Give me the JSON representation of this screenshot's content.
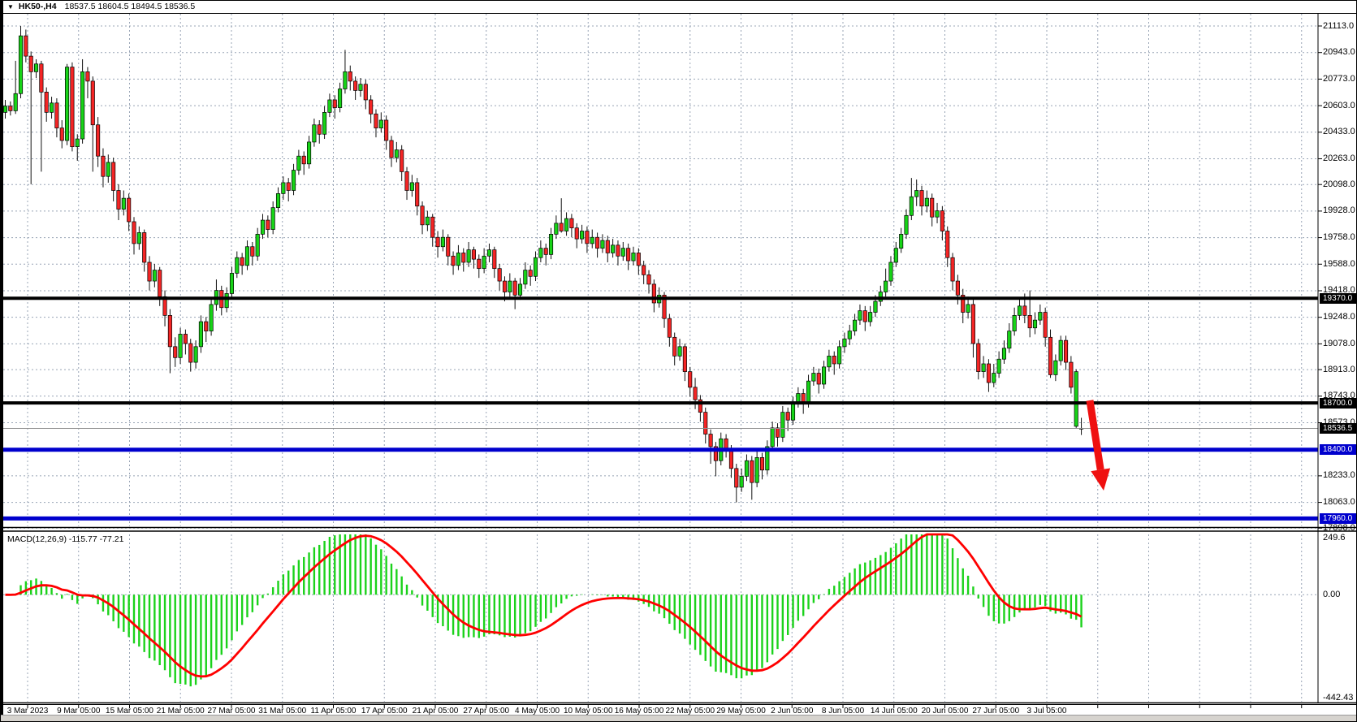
{
  "window": {
    "dropdown_icon": "▼",
    "symbol_period": "HK50-,H4",
    "ohlc_readout": "18537.5 18604.5 18494.5 18536.5"
  },
  "colors": {
    "background": "#ffffff",
    "grid": "#98a4b5",
    "bull": "#17d317",
    "bear": "#f42525",
    "wick": "#111111",
    "black_level": "#000000",
    "blue_level": "#0000cd",
    "current_price_line": "#909090",
    "macd_histogram": "#1bd21b",
    "macd_signal": "#ff0000",
    "arrow": "#ef1010"
  },
  "chart_data": {
    "type": "candlestick",
    "symbol": "HK50",
    "period": "H4",
    "title": "HK50-,H4  18537.5 18604.5 18494.5 18536.5",
    "ylim": [
      17910,
      21191
    ],
    "grid": true,
    "y_ticks": [
      21113.0,
      20943.0,
      20773.0,
      20603.0,
      20433.0,
      20263.0,
      20098.0,
      19928.0,
      19758.0,
      19588.0,
      19418.0,
      19248.0,
      19078.0,
      18913.0,
      18743.0,
      18573.0,
      18233.0,
      18063.0,
      17898.0
    ],
    "x_labels": [
      "3 Mar 2023",
      "9 Mar 05:00",
      "15 Mar 05:00",
      "21 Mar 05:00",
      "27 Mar 05:00",
      "31 Mar 05:00",
      "11 Apr 05:00",
      "17 Apr 05:00",
      "21 Apr 05:00",
      "27 Apr 05:00",
      "4 May 05:00",
      "10 May 05:00",
      "16 May 05:00",
      "22 May 05:00",
      "29 May 05:00",
      "2 Jun 05:00",
      "8 Jun 05:00",
      "14 Jun 05:00",
      "20 Jun 05:00",
      "27 Jun 05:00",
      "3 Jul 05:00"
    ],
    "levels": [
      {
        "value": 19370.0,
        "label": "19370.0",
        "color_key": "black_level",
        "thickness": 4,
        "badge": "black"
      },
      {
        "value": 18700.0,
        "label": "18700.0",
        "color_key": "black_level",
        "thickness": 4,
        "badge": "black"
      },
      {
        "value": 18536.5,
        "label": "18536.5",
        "color_key": "current_price_line",
        "thickness": 1,
        "badge": "black",
        "current_price": true
      },
      {
        "value": 18400.0,
        "label": "18400.0",
        "color_key": "blue_level",
        "thickness": 5,
        "badge": "blue"
      },
      {
        "value": 17960.0,
        "label": "17960.0",
        "color_key": "blue_level",
        "thickness": 5,
        "badge": "blue"
      }
    ],
    "candles": [
      [
        20560,
        20640,
        20520,
        20600
      ],
      [
        20600,
        20630,
        20540,
        20570
      ],
      [
        20570,
        20890,
        20550,
        20680
      ],
      [
        20680,
        21113,
        20650,
        21050
      ],
      [
        21050,
        21090,
        20880,
        20920
      ],
      [
        20920,
        20950,
        20100,
        20820
      ],
      [
        20820,
        20900,
        20780,
        20870
      ],
      [
        20870,
        20890,
        20180,
        20690
      ],
      [
        20690,
        20720,
        20500,
        20560
      ],
      [
        20560,
        20660,
        20520,
        20620
      ],
      [
        20620,
        20650,
        20400,
        20460
      ],
      [
        20460,
        20510,
        20330,
        20380
      ],
      [
        20380,
        20870,
        20350,
        20850
      ],
      [
        20850,
        20880,
        20310,
        20340
      ],
      [
        20340,
        20420,
        20250,
        20390
      ],
      [
        20390,
        20900,
        20360,
        20820
      ],
      [
        20820,
        20850,
        20650,
        20760
      ],
      [
        20760,
        20790,
        20180,
        20480
      ],
      [
        20480,
        20530,
        20210,
        20280
      ],
      [
        20280,
        20330,
        20080,
        20150
      ],
      [
        20150,
        20290,
        20110,
        20240
      ],
      [
        20240,
        20270,
        19990,
        20060
      ],
      [
        20060,
        20100,
        19870,
        19940
      ],
      [
        19940,
        20060,
        19900,
        20010
      ],
      [
        20010,
        20040,
        19800,
        19860
      ],
      [
        19860,
        19890,
        19650,
        19720
      ],
      [
        19720,
        19830,
        19680,
        19790
      ],
      [
        19790,
        19810,
        19540,
        19600
      ],
      [
        19600,
        19640,
        19420,
        19480
      ],
      [
        19480,
        19590,
        19440,
        19550
      ],
      [
        19550,
        19570,
        19320,
        19380
      ],
      [
        19380,
        19420,
        19190,
        19260
      ],
      [
        19260,
        19300,
        18890,
        19060
      ],
      [
        19060,
        19120,
        18930,
        18990
      ],
      [
        18990,
        19180,
        18950,
        19140
      ],
      [
        19140,
        19170,
        19010,
        19080
      ],
      [
        19080,
        19110,
        18900,
        18960
      ],
      [
        18960,
        19100,
        18920,
        19060
      ],
      [
        19060,
        19260,
        19020,
        19220
      ],
      [
        19220,
        19250,
        19090,
        19160
      ],
      [
        19160,
        19370,
        19130,
        19330
      ],
      [
        19330,
        19490,
        19290,
        19420
      ],
      [
        19420,
        19450,
        19260,
        19310
      ],
      [
        19310,
        19440,
        19280,
        19400
      ],
      [
        19400,
        19570,
        19370,
        19530
      ],
      [
        19530,
        19670,
        19500,
        19630
      ],
      [
        19630,
        19660,
        19520,
        19580
      ],
      [
        19580,
        19740,
        19550,
        19700
      ],
      [
        19700,
        19730,
        19580,
        19640
      ],
      [
        19640,
        19820,
        19610,
        19780
      ],
      [
        19780,
        19910,
        19750,
        19870
      ],
      [
        19870,
        19900,
        19760,
        19810
      ],
      [
        19810,
        19990,
        19780,
        19950
      ],
      [
        19950,
        20080,
        19920,
        20040
      ],
      [
        20040,
        20150,
        20000,
        20110
      ],
      [
        20110,
        20140,
        19990,
        20060
      ],
      [
        20060,
        20230,
        20030,
        20190
      ],
      [
        20190,
        20320,
        20160,
        20280
      ],
      [
        20280,
        20310,
        20160,
        20230
      ],
      [
        20230,
        20410,
        20200,
        20370
      ],
      [
        20370,
        20520,
        20340,
        20480
      ],
      [
        20480,
        20510,
        20360,
        20420
      ],
      [
        20420,
        20600,
        20390,
        20560
      ],
      [
        20560,
        20680,
        20530,
        20640
      ],
      [
        20640,
        20670,
        20520,
        20590
      ],
      [
        20590,
        20750,
        20560,
        20710
      ],
      [
        20710,
        20960,
        20680,
        20820
      ],
      [
        20820,
        20860,
        20700,
        20760
      ],
      [
        20760,
        20790,
        20640,
        20700
      ],
      [
        20700,
        20780,
        20660,
        20740
      ],
      [
        20740,
        20770,
        20580,
        20640
      ],
      [
        20640,
        20670,
        20490,
        20550
      ],
      [
        20550,
        20580,
        20400,
        20460
      ],
      [
        20460,
        20560,
        20430,
        20510
      ],
      [
        20510,
        20540,
        20320,
        20380
      ],
      [
        20380,
        20410,
        20210,
        20270
      ],
      [
        20270,
        20370,
        20240,
        20320
      ],
      [
        20320,
        20350,
        20120,
        20180
      ],
      [
        20180,
        20210,
        20000,
        20060
      ],
      [
        20060,
        20160,
        20020,
        20110
      ],
      [
        20110,
        20140,
        19900,
        19960
      ],
      [
        19960,
        19990,
        19780,
        19840
      ],
      [
        19840,
        19930,
        19800,
        19890
      ],
      [
        19890,
        19910,
        19700,
        19760
      ],
      [
        19760,
        19800,
        19630,
        19700
      ],
      [
        19700,
        19810,
        19670,
        19760
      ],
      [
        19760,
        19780,
        19580,
        19640
      ],
      [
        19640,
        19670,
        19520,
        19580
      ],
      [
        19580,
        19710,
        19550,
        19660
      ],
      [
        19660,
        19690,
        19540,
        19600
      ],
      [
        19600,
        19730,
        19570,
        19680
      ],
      [
        19680,
        19700,
        19560,
        19620
      ],
      [
        19620,
        19650,
        19500,
        19560
      ],
      [
        19560,
        19690,
        19530,
        19640
      ],
      [
        19640,
        19720,
        19600,
        19680
      ],
      [
        19680,
        19700,
        19500,
        19560
      ],
      [
        19560,
        19590,
        19420,
        19480
      ],
      [
        19480,
        19510,
        19350,
        19410
      ],
      [
        19410,
        19530,
        19380,
        19480
      ],
      [
        19480,
        19500,
        19300,
        19390
      ],
      [
        19390,
        19500,
        19360,
        19460
      ],
      [
        19460,
        19600,
        19430,
        19550
      ],
      [
        19550,
        19580,
        19450,
        19510
      ],
      [
        19510,
        19670,
        19480,
        19630
      ],
      [
        19630,
        19740,
        19600,
        19690
      ],
      [
        19690,
        19720,
        19580,
        19650
      ],
      [
        19650,
        19820,
        19620,
        19780
      ],
      [
        19780,
        19900,
        19750,
        19850
      ],
      [
        19850,
        20010,
        19790,
        19800
      ],
      [
        19800,
        19920,
        19770,
        19880
      ],
      [
        19880,
        19910,
        19760,
        19820
      ],
      [
        19820,
        19850,
        19690,
        19750
      ],
      [
        19750,
        19840,
        19720,
        19800
      ],
      [
        19800,
        19830,
        19660,
        19720
      ],
      [
        19720,
        19810,
        19690,
        19760
      ],
      [
        19760,
        19790,
        19630,
        19690
      ],
      [
        19690,
        19780,
        19660,
        19740
      ],
      [
        19740,
        19770,
        19600,
        19660
      ],
      [
        19660,
        19750,
        19630,
        19710
      ],
      [
        19710,
        19740,
        19580,
        19640
      ],
      [
        19640,
        19730,
        19610,
        19690
      ],
      [
        19690,
        19720,
        19550,
        19610
      ],
      [
        19610,
        19700,
        19580,
        19660
      ],
      [
        19660,
        19690,
        19520,
        19580
      ],
      [
        19580,
        19610,
        19460,
        19520
      ],
      [
        19520,
        19550,
        19400,
        19460
      ],
      [
        19460,
        19490,
        19280,
        19340
      ],
      [
        19340,
        19440,
        19310,
        19390
      ],
      [
        19390,
        19410,
        19180,
        19240
      ],
      [
        19240,
        19270,
        19060,
        19120
      ],
      [
        19120,
        19150,
        18940,
        19000
      ],
      [
        19000,
        19110,
        18970,
        19060
      ],
      [
        19060,
        19080,
        18840,
        18900
      ],
      [
        18900,
        18930,
        18740,
        18800
      ],
      [
        18800,
        18860,
        18660,
        18720
      ],
      [
        18720,
        18750,
        18580,
        18640
      ],
      [
        18640,
        18670,
        18440,
        18500
      ],
      [
        18500,
        18530,
        18310,
        18420
      ],
      [
        18420,
        18450,
        18230,
        18330
      ],
      [
        18330,
        18510,
        18300,
        18470
      ],
      [
        18470,
        18500,
        18350,
        18400
      ],
      [
        18400,
        18430,
        18220,
        18280
      ],
      [
        18280,
        18310,
        18063,
        18160
      ],
      [
        18160,
        18280,
        18130,
        18230
      ],
      [
        18230,
        18370,
        18200,
        18330
      ],
      [
        18330,
        18360,
        18080,
        18190
      ],
      [
        18190,
        18390,
        18160,
        18350
      ],
      [
        18350,
        18380,
        18210,
        18270
      ],
      [
        18270,
        18460,
        18240,
        18420
      ],
      [
        18420,
        18580,
        18390,
        18540
      ],
      [
        18540,
        18570,
        18420,
        18480
      ],
      [
        18480,
        18680,
        18450,
        18640
      ],
      [
        18640,
        18670,
        18520,
        18590
      ],
      [
        18590,
        18740,
        18560,
        18700
      ],
      [
        18700,
        18800,
        18670,
        18760
      ],
      [
        18760,
        18790,
        18630,
        18700
      ],
      [
        18700,
        18880,
        18670,
        18840
      ],
      [
        18840,
        18930,
        18810,
        18890
      ],
      [
        18890,
        18920,
        18760,
        18820
      ],
      [
        18820,
        18970,
        18790,
        18930
      ],
      [
        18930,
        19040,
        18900,
        19000
      ],
      [
        19000,
        19030,
        18880,
        18950
      ],
      [
        18950,
        19100,
        18920,
        19060
      ],
      [
        19060,
        19150,
        19020,
        19110
      ],
      [
        19110,
        19200,
        19070,
        19160
      ],
      [
        19160,
        19270,
        19130,
        19230
      ],
      [
        19230,
        19330,
        19200,
        19290
      ],
      [
        19290,
        19320,
        19160,
        19220
      ],
      [
        19220,
        19320,
        19190,
        19280
      ],
      [
        19280,
        19390,
        19250,
        19350
      ],
      [
        19350,
        19450,
        19320,
        19410
      ],
      [
        19410,
        19560,
        19380,
        19480
      ],
      [
        19480,
        19640,
        19450,
        19600
      ],
      [
        19600,
        19730,
        19570,
        19690
      ],
      [
        19690,
        19820,
        19660,
        19780
      ],
      [
        19780,
        19940,
        19750,
        19900
      ],
      [
        19900,
        20140,
        19870,
        20020
      ],
      [
        20020,
        20130,
        19960,
        20060
      ],
      [
        20060,
        20090,
        19900,
        19960
      ],
      [
        19960,
        20060,
        19920,
        20010
      ],
      [
        20010,
        20040,
        19830,
        19890
      ],
      [
        19890,
        19980,
        19850,
        19930
      ],
      [
        19930,
        19960,
        19740,
        19800
      ],
      [
        19800,
        19830,
        19570,
        19630
      ],
      [
        19630,
        19660,
        19420,
        19480
      ],
      [
        19480,
        19520,
        19330,
        19390
      ],
      [
        19390,
        19430,
        19210,
        19280
      ],
      [
        19280,
        19380,
        19240,
        19330
      ],
      [
        19330,
        19360,
        18990,
        19080
      ],
      [
        19080,
        19110,
        18850,
        18900
      ],
      [
        18900,
        19000,
        18860,
        18950
      ],
      [
        18950,
        18980,
        18770,
        18830
      ],
      [
        18830,
        18950,
        18800,
        18890
      ],
      [
        18890,
        19030,
        18860,
        18980
      ],
      [
        18980,
        19100,
        18950,
        19050
      ],
      [
        19050,
        19210,
        19020,
        19160
      ],
      [
        19160,
        19310,
        19130,
        19260
      ],
      [
        19260,
        19370,
        19230,
        19320
      ],
      [
        19320,
        19400,
        19210,
        19260
      ],
      [
        19260,
        19420,
        19120,
        19180
      ],
      [
        19180,
        19280,
        19140,
        19230
      ],
      [
        19230,
        19330,
        19200,
        19280
      ],
      [
        19280,
        19310,
        19060,
        19120
      ],
      [
        19120,
        19170,
        18860,
        18880
      ],
      [
        18880,
        19010,
        18840,
        18970
      ],
      [
        18970,
        19130,
        18940,
        19100
      ],
      [
        19100,
        19130,
        18910,
        18960
      ],
      [
        18960,
        19000,
        18760,
        18800
      ],
      [
        18550,
        18915,
        18540,
        18900
      ],
      [
        18537.5,
        18604.5,
        18494.5,
        18536.5
      ]
    ],
    "macd": {
      "label": "MACD(12,26,9)",
      "fast": 12,
      "slow": 26,
      "signal": 9,
      "macd_value": "-115.77",
      "signal_value": "-77.21",
      "axis_ticks": [
        {
          "value": 249.6,
          "label": "249.6"
        },
        {
          "value": 0,
          "label": "0.00"
        },
        {
          "value": -442.43,
          "label": "-442.43"
        }
      ],
      "ylim": [
        -442.43,
        249.6
      ]
    },
    "annotations": [
      {
        "type": "arrow",
        "direction": "down",
        "meaning": "sell / breakdown projection"
      }
    ]
  }
}
